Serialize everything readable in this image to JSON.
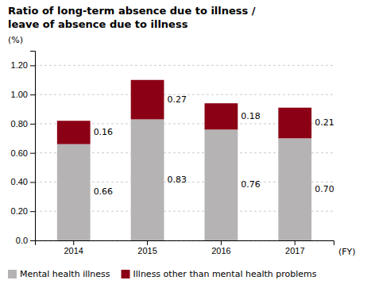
{
  "chart_data": {
    "type": "bar",
    "stacked": true,
    "title": [
      "Ratio of long-term absence due to illness /",
      "leave of absence due to illness"
    ],
    "x_label": "(FY)",
    "y_label": "(%)",
    "categories": [
      "2014",
      "2015",
      "2016",
      "2017"
    ],
    "series": [
      {
        "name": "Mental health illness",
        "color": "#b5b3b3",
        "values": [
          0.66,
          0.83,
          0.76,
          0.7
        ],
        "value_labels": [
          "0.66",
          "0.83",
          "0.76",
          "0.70"
        ]
      },
      {
        "name": "Illness other than mental health problems",
        "color": "#8b0015",
        "values": [
          0.16,
          0.27,
          0.18,
          0.21
        ],
        "value_labels": [
          "0.16",
          "0.27",
          "0.18",
          "0.21"
        ]
      }
    ],
    "ylim": [
      0,
      1.3
    ],
    "yticks": [
      {
        "value": 0.0,
        "label": "0.0"
      },
      {
        "value": 0.2,
        "label": "0.20"
      },
      {
        "value": 0.4,
        "label": "0.40"
      },
      {
        "value": 0.6,
        "label": "0.60"
      },
      {
        "value": 0.8,
        "label": "0.80"
      },
      {
        "value": 1.0,
        "label": "1.00"
      },
      {
        "value": 1.2,
        "label": "1.20"
      }
    ],
    "grid": true,
    "data_labels": true,
    "legend": "bottom"
  }
}
